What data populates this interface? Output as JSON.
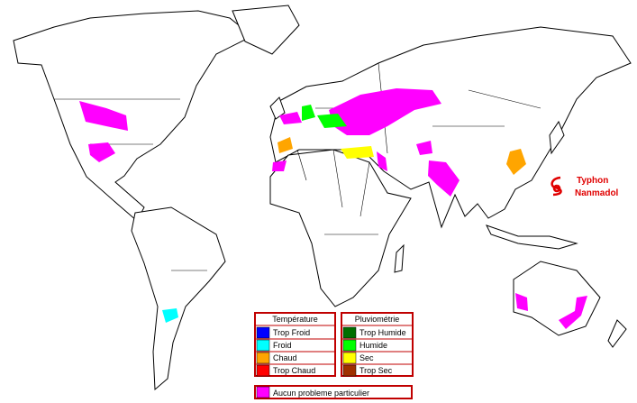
{
  "annotation": {
    "lines": [
      "Typhon",
      "Nanmadol"
    ],
    "color": "#e00000"
  },
  "legend": {
    "temperature": {
      "title": "Température",
      "items": [
        {
          "label": "Trop Froid",
          "color": "#0000ff"
        },
        {
          "label": "Froid",
          "color": "#00ffff"
        },
        {
          "label": "Chaud",
          "color": "#ffa500"
        },
        {
          "label": "Trop Chaud",
          "color": "#ff0000"
        }
      ]
    },
    "rainfall": {
      "title": "Pluviométrie",
      "items": [
        {
          "label": "Trop Humide",
          "color": "#007000"
        },
        {
          "label": "Humide",
          "color": "#00ff00"
        },
        {
          "label": "Sec",
          "color": "#ffff00"
        },
        {
          "label": "Trop Sec",
          "color": "#a03000"
        }
      ]
    },
    "none": {
      "label": "Aucun probleme particulier",
      "color": "#ff00ff"
    },
    "border_color": "#c00000"
  }
}
